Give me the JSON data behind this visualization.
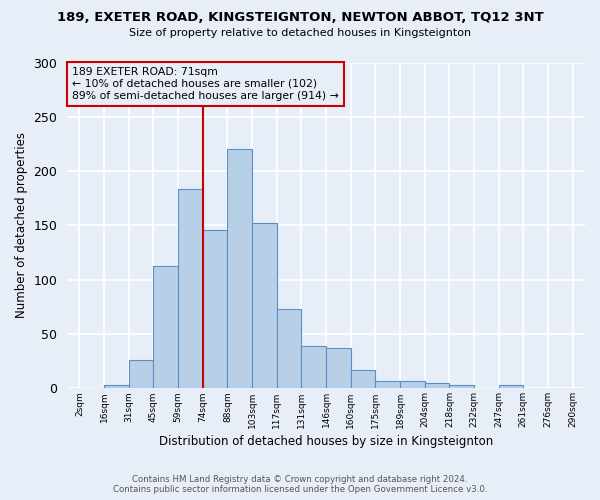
{
  "title1": "189, EXETER ROAD, KINGSTEIGNTON, NEWTON ABBOT, TQ12 3NT",
  "title2": "Size of property relative to detached houses in Kingsteignton",
  "xlabel": "Distribution of detached houses by size in Kingsteignton",
  "ylabel": "Number of detached properties",
  "footer1": "Contains HM Land Registry data © Crown copyright and database right 2024.",
  "footer2": "Contains public sector information licensed under the Open Government Licence v3.0.",
  "annotation_title": "189 EXETER ROAD: 71sqm",
  "annotation_line1": "← 10% of detached houses are smaller (102)",
  "annotation_line2": "89% of semi-detached houses are larger (914) →",
  "bar_values": [
    0,
    3,
    26,
    113,
    184,
    146,
    220,
    152,
    73,
    39,
    37,
    17,
    7,
    7,
    5,
    3,
    0,
    3
  ],
  "tick_labels": [
    "2sqm",
    "16sqm",
    "31sqm",
    "45sqm",
    "59sqm",
    "74sqm",
    "88sqm",
    "103sqm",
    "117sqm",
    "131sqm",
    "146sqm",
    "160sqm",
    "175sqm",
    "189sqm",
    "204sqm",
    "218sqm",
    "232sqm",
    "247sqm",
    "261sqm",
    "276sqm",
    "290sqm"
  ],
  "bar_color": "#b8cfe8",
  "bar_edge_color": "#5b8ec4",
  "vline_color": "#cc0000",
  "vline_x": 5,
  "annotation_box_edge_color": "#cc0000",
  "bg_color": "#e8eef8",
  "grid_color": "#ffffff",
  "ylim": [
    0,
    300
  ],
  "yticks": [
    0,
    50,
    100,
    150,
    200,
    250,
    300
  ]
}
